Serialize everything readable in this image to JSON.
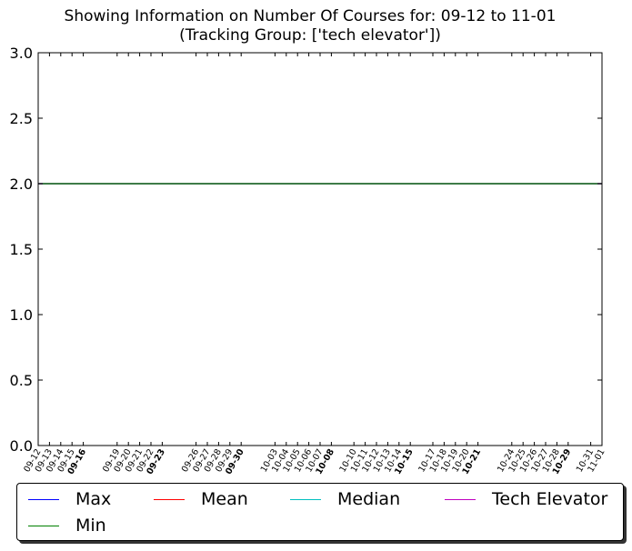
{
  "chart_data": {
    "type": "line",
    "title": "Showing Information on Number Of Courses for: 09-12 to 11-01",
    "subtitle": "(Tracking Group: ['tech elevator'])",
    "xlabel": "",
    "ylabel": "",
    "ylim": [
      0.0,
      3.0
    ],
    "yticks": [
      "0.0",
      "0.5",
      "1.0",
      "1.5",
      "2.0",
      "2.5",
      "3.0"
    ],
    "x": [
      "09-12",
      "09-13",
      "09-14",
      "09-15",
      "09-16",
      "09-19",
      "09-20",
      "09-21",
      "09-22",
      "09-23",
      "09-26",
      "09-27",
      "09-28",
      "09-29",
      "09-30",
      "10-03",
      "10-04",
      "10-05",
      "10-06",
      "10-07",
      "10-08",
      "10-10",
      "10-11",
      "10-12",
      "10-13",
      "10-14",
      "10-15",
      "10-17",
      "10-18",
      "10-19",
      "10-20",
      "10-21",
      "10-24",
      "10-25",
      "10-26",
      "10-27",
      "10-28",
      "10-29",
      "10-31",
      "11-01"
    ],
    "bold_x": [
      "09-16",
      "09-23",
      "09-30",
      "10-08",
      "10-15",
      "10-21",
      "10-29"
    ],
    "series": [
      {
        "name": "Max",
        "color": "#0000ff",
        "value": 2.0
      },
      {
        "name": "Mean",
        "color": "#ff0000",
        "value": 2.0
      },
      {
        "name": "Median",
        "color": "#00bfbf",
        "value": 2.0
      },
      {
        "name": "Tech Elevator",
        "color": "#bf00bf",
        "value": 2.0
      },
      {
        "name": "Min",
        "color": "#008000",
        "value": 2.0
      }
    ],
    "legend_position": "below",
    "grid": false
  }
}
